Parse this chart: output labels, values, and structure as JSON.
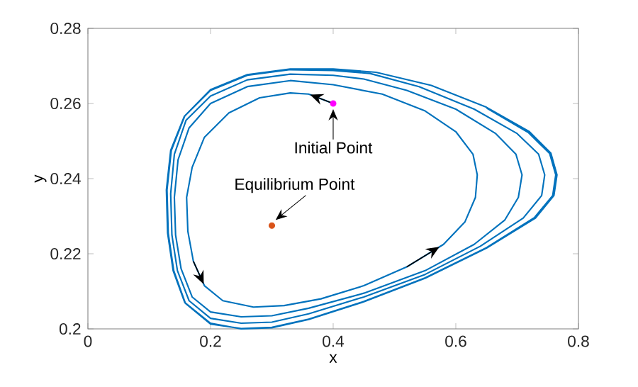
{
  "chart_data": {
    "type": "line",
    "xlabel": "x",
    "ylabel": "y",
    "xlim": [
      0,
      0.8
    ],
    "ylim": [
      0.2,
      0.28
    ],
    "xticks": [
      0,
      0.2,
      0.4,
      0.6,
      0.8
    ],
    "yticks": [
      0.2,
      0.22,
      0.24,
      0.26,
      0.28
    ],
    "grid": false,
    "annotations": [
      {
        "text": "Initial Point",
        "x": 0.4,
        "y": 0.26
      },
      {
        "text": "Equilibrium Point",
        "x": 0.3,
        "y": 0.2275
      }
    ],
    "series": [
      {
        "color": "#0072bd",
        "marker": "none",
        "x": [
          0.4,
          0.36,
          0.33,
          0.28,
          0.23,
          0.19,
          0.17,
          0.161,
          0.163,
          0.172,
          0.19,
          0.22,
          0.27,
          0.32,
          0.38,
          0.45,
          0.52,
          0.58,
          0.615,
          0.632,
          0.635,
          0.628,
          0.6,
          0.55,
          0.48,
          0.4,
          0.33,
          0.26,
          0.2,
          0.165,
          0.147,
          0.141,
          0.143,
          0.152,
          0.17,
          0.2,
          0.25,
          0.3,
          0.36,
          0.45,
          0.55,
          0.63,
          0.68,
          0.702,
          0.708,
          0.698,
          0.665,
          0.6,
          0.52,
          0.45,
          0.4,
          0.33,
          0.26,
          0.2,
          0.16,
          0.141,
          0.135,
          0.137,
          0.146,
          0.165,
          0.2,
          0.25,
          0.3,
          0.36,
          0.45,
          0.55,
          0.64,
          0.71,
          0.74,
          0.745,
          0.735,
          0.7,
          0.63,
          0.54,
          0.46,
          0.4,
          0.33,
          0.26,
          0.2,
          0.157,
          0.135,
          0.128,
          0.13,
          0.139,
          0.158,
          0.2,
          0.25,
          0.3,
          0.36,
          0.45,
          0.55,
          0.65,
          0.73,
          0.76,
          0.765,
          0.755,
          0.72,
          0.65,
          0.56,
          0.47,
          0.4,
          0.33,
          0.26,
          0.2,
          0.158,
          0.136,
          0.129,
          0.131,
          0.14,
          0.159,
          0.2,
          0.25,
          0.3,
          0.36,
          0.45,
          0.55,
          0.65,
          0.728,
          0.758,
          0.763,
          0.753,
          0.718,
          0.65
        ],
        "values": [
          0.26,
          0.2625,
          0.2628,
          0.2615,
          0.2575,
          0.251,
          0.243,
          0.235,
          0.226,
          0.218,
          0.2115,
          0.2075,
          0.2058,
          0.2062,
          0.208,
          0.2115,
          0.2165,
          0.2225,
          0.2285,
          0.235,
          0.241,
          0.2465,
          0.2525,
          0.258,
          0.2625,
          0.265,
          0.2661,
          0.2645,
          0.26,
          0.2535,
          0.245,
          0.235,
          0.225,
          0.216,
          0.2085,
          0.2045,
          0.2032,
          0.2035,
          0.2055,
          0.2095,
          0.2155,
          0.2225,
          0.229,
          0.235,
          0.241,
          0.2465,
          0.252,
          0.2585,
          0.2635,
          0.2665,
          0.2675,
          0.2678,
          0.2663,
          0.262,
          0.2555,
          0.2465,
          0.236,
          0.225,
          0.2155,
          0.2075,
          0.2028,
          0.2015,
          0.2018,
          0.204,
          0.2085,
          0.2145,
          0.222,
          0.2295,
          0.2355,
          0.241,
          0.2465,
          0.252,
          0.2585,
          0.2645,
          0.268,
          0.2688,
          0.269,
          0.2675,
          0.2635,
          0.2565,
          0.2475,
          0.237,
          0.2255,
          0.2155,
          0.207,
          0.2015,
          0.2,
          0.2003,
          0.2025,
          0.2072,
          0.2135,
          0.2215,
          0.2295,
          0.2355,
          0.241,
          0.2468,
          0.2525,
          0.259,
          0.2648,
          0.2683,
          0.2692,
          0.2692,
          0.2677,
          0.2637,
          0.2567,
          0.2475,
          0.237,
          0.2255,
          0.2155,
          0.2068,
          0.2013,
          0.2001,
          0.2004,
          0.2026,
          0.2073,
          0.2136,
          0.2216,
          0.2296,
          0.2355,
          0.241,
          0.2467,
          0.2523,
          0.2588
        ]
      },
      {
        "type": "scatter",
        "color": "#ff00ff",
        "marker": "circle",
        "x": [
          0.4
        ],
        "values": [
          0.26
        ]
      },
      {
        "type": "scatter",
        "color": "#d95319",
        "marker": "circle",
        "x": [
          0.3
        ],
        "values": [
          0.2275
        ]
      }
    ]
  }
}
